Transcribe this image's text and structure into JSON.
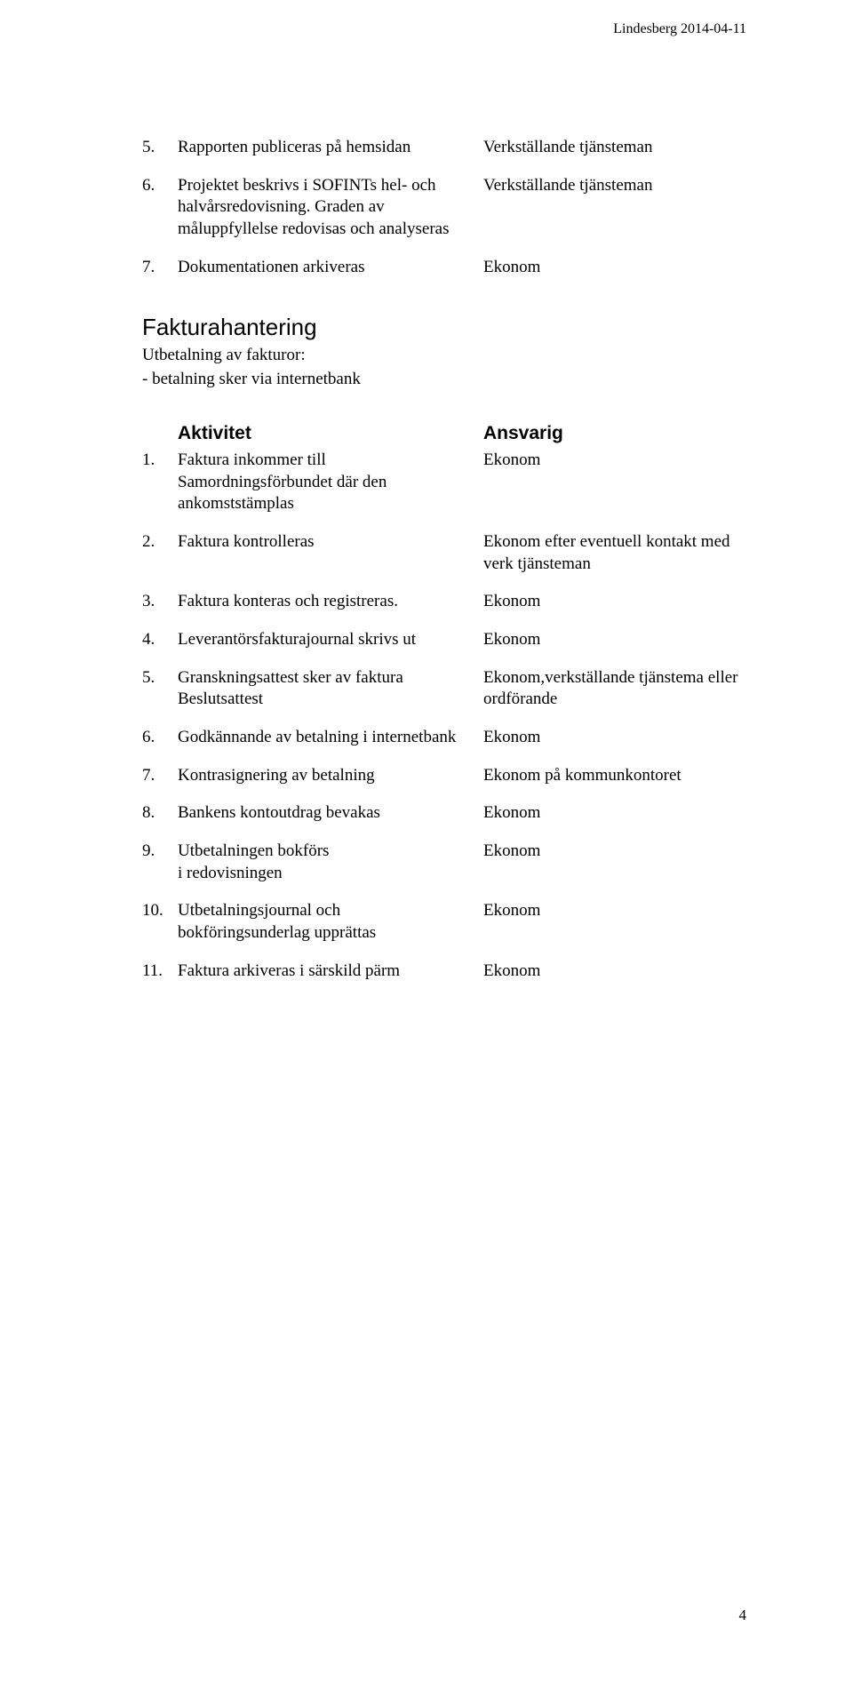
{
  "header": {
    "text": "Lindesberg 2014-04-11"
  },
  "page_number": "4",
  "top_list": {
    "items": [
      {
        "num": "5.",
        "left": "Rapporten publiceras på hemsidan",
        "right": "Verkställande tjänsteman"
      },
      {
        "num": "6.",
        "left": "Projektet beskrivs i SOFINTs hel- och halvårsredovisning. Graden av måluppfyllelse redovisas och analyseras",
        "right": "Verkställande tjänsteman"
      },
      {
        "num": "7.",
        "left": "Dokumentationen arkiveras",
        "right": "Ekonom"
      }
    ]
  },
  "section": {
    "title": "Fakturahantering",
    "desc_lines": [
      "Utbetalning av fakturor:",
      "- betalning sker via internetbank"
    ],
    "col_head_left": "Aktivitet",
    "col_head_right": "Ansvarig",
    "items": [
      {
        "num": "1.",
        "left": "Faktura inkommer till Samordningsförbundet där den ankomststämplas",
        "right": "Ekonom"
      },
      {
        "num": "2.",
        "left": "Faktura kontrolleras",
        "right": "Ekonom efter eventuell kontakt med verk tjänsteman"
      },
      {
        "num": "3.",
        "left": "Faktura konteras och registreras.",
        "right": "Ekonom"
      },
      {
        "num": "4.",
        "left": "Leverantörsfakturajournal skrivs ut",
        "right": "Ekonom"
      },
      {
        "num": "5.",
        "left": "Granskningsattest sker av faktura Beslutsattest",
        "right": "Ekonom,verkställande tjänstema eller ordförande"
      },
      {
        "num": "6.",
        "left": "Godkännande av betalning i internetbank",
        "right": "Ekonom"
      },
      {
        "num": "7.",
        "left": "Kontrasignering av betalning",
        "right": "Ekonom på kommunkontoret"
      },
      {
        "num": "8.",
        "left": "Bankens kontoutdrag bevakas",
        "right": "Ekonom"
      },
      {
        "num": "9.",
        "left": "Utbetalningen bokförs\ni redovisningen",
        "right": "Ekonom"
      },
      {
        "num": "10.",
        "left": "Utbetalningsjournal och bokföringsunderlag upprättas",
        "right": "Ekonom"
      },
      {
        "num": "11.",
        "left": "Faktura arkiveras i särskild pärm",
        "right": "Ekonom"
      }
    ]
  }
}
